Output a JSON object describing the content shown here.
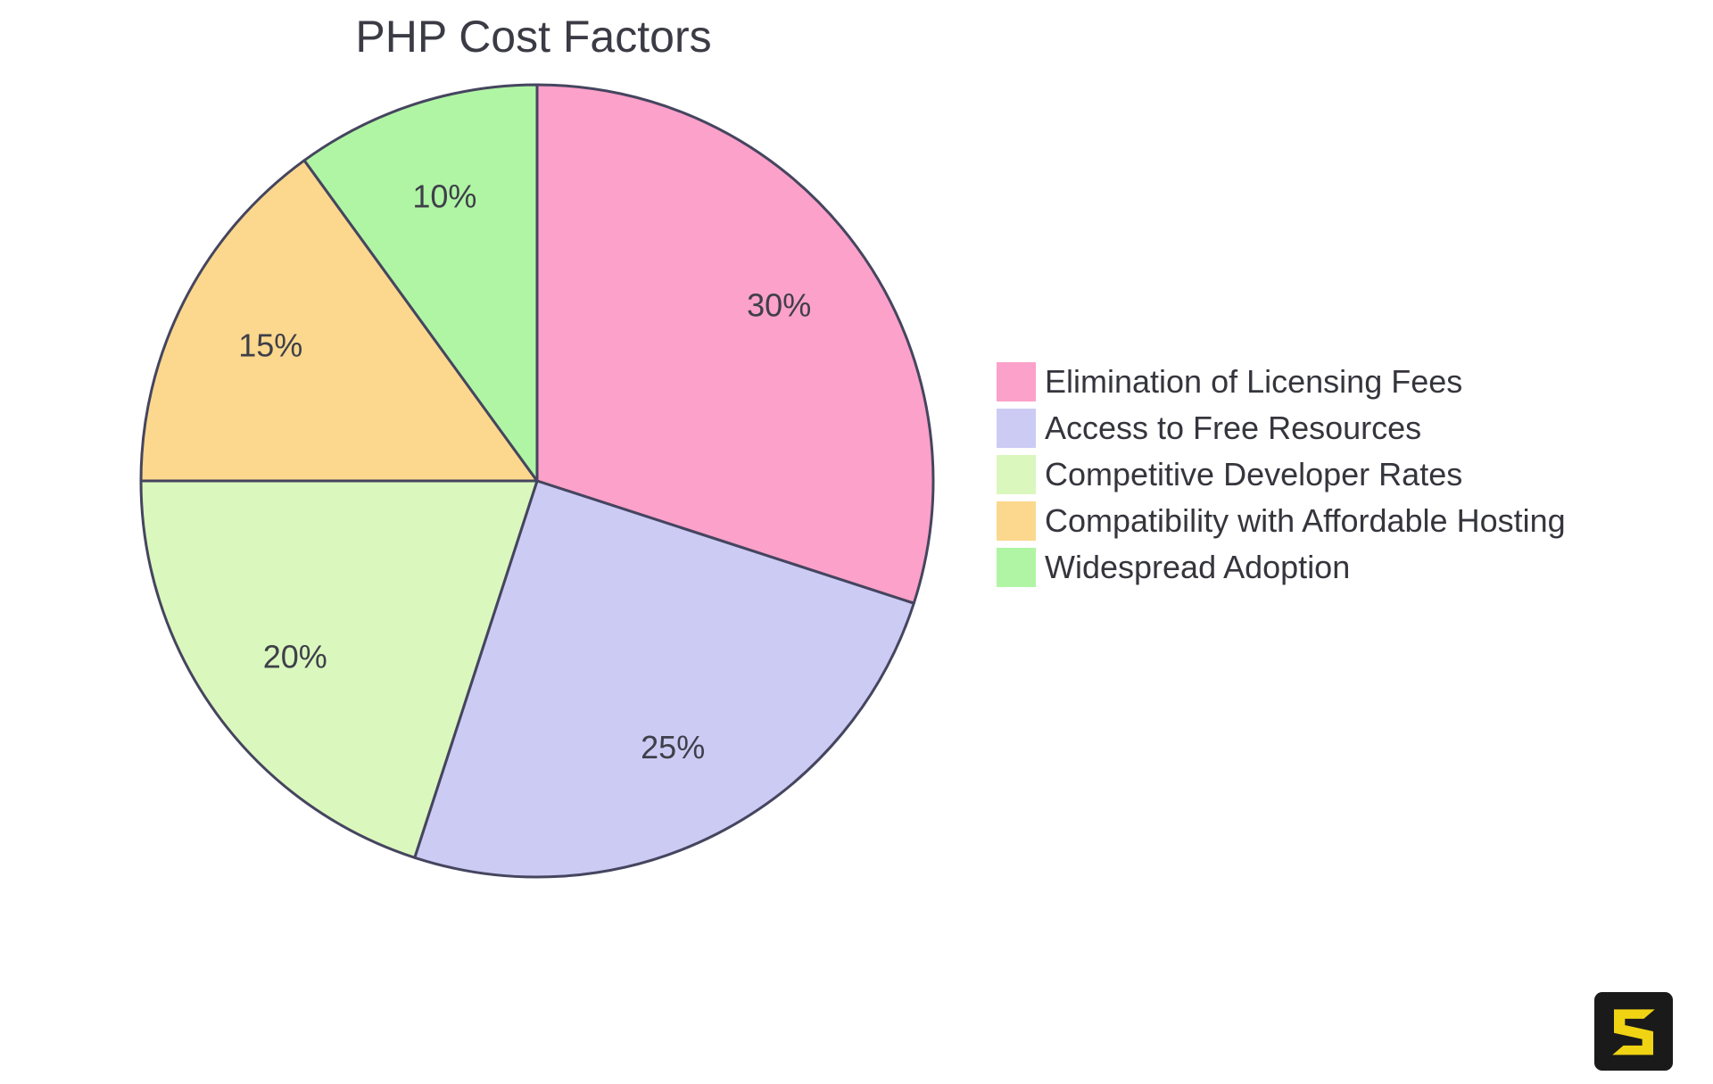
{
  "title": "PHP Cost Factors",
  "chart_data": {
    "type": "pie",
    "title": "PHP Cost Factors",
    "categories": [
      "Elimination of Licensing Fees",
      "Access to Free Resources",
      "Competitive Developer Rates",
      "Compatibility with Affordable Hosting",
      "Widespread Adoption"
    ],
    "values": [
      30,
      25,
      20,
      15,
      10
    ],
    "slice_labels": [
      "30%",
      "25%",
      "20%",
      "15%",
      "10%"
    ],
    "colors": [
      "#FCA1C9",
      "#CBCBF4",
      "#DAF7BD",
      "#FBD88D",
      "#B0F5A4"
    ],
    "stroke_color": "#45455F",
    "label_color": "#3F3F4A",
    "start_angle_deg": 0,
    "direction": "clockwise",
    "legend_position": "right",
    "grid": false
  },
  "logo": {
    "glyph": "S",
    "background_color": "#1A1A1A",
    "glyph_color": "#F0D313"
  }
}
